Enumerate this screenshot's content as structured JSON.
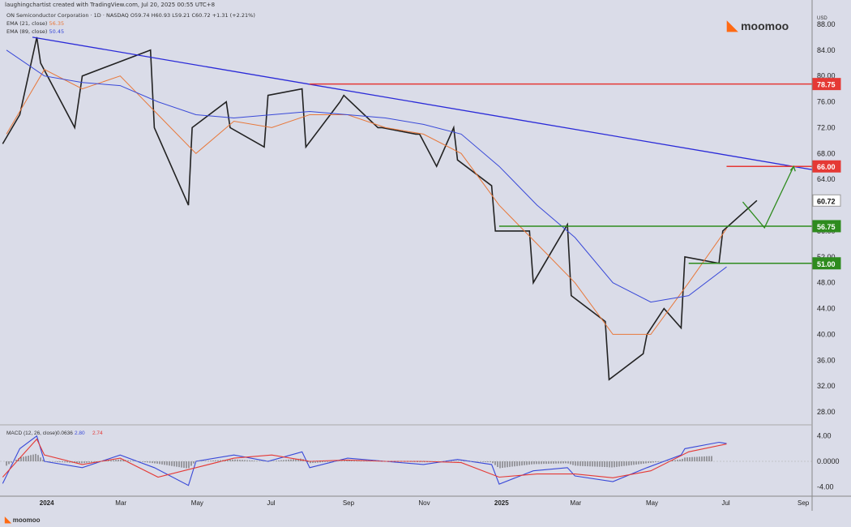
{
  "attribution": "laughingchartist created with TradingView.com, Jul 20, 2025 00:55 UTC+8",
  "legend": {
    "title": "ON Semiconductor Corporation · 1D · NASDAQ O59.74 H60.93 L59.21 C60.72 +1.31 (+2.21%)",
    "ema21_label": "EMA (21, close)",
    "ema21_value": "56.35",
    "ema89_label": "EMA (89, close)",
    "ema89_value": "50.45"
  },
  "brand": {
    "name": "moomoo",
    "footer": "moomoo"
  },
  "currency": "USD",
  "colors": {
    "background": "#dadce8",
    "ema21": "#e8783a",
    "ema89": "#3949d8",
    "trendline": "#2a2ad8",
    "resistance": "#e53935",
    "support": "#2e8b1e",
    "candle": "#222222"
  },
  "chart_data": [
    {
      "type": "line",
      "title": "ON Semiconductor Corporation · 1D · NASDAQ",
      "last_close": 60.72,
      "y_ticks": [
        "88.00",
        "84.00",
        "80.00",
        "76.00",
        "72.00",
        "68.00",
        "64.00",
        "56.00",
        "52.00",
        "48.00",
        "44.00",
        "40.00",
        "36.00",
        "32.00",
        "28.00"
      ],
      "ylim": [
        26.5,
        90
      ],
      "x_ticks": [
        "2024",
        "Mar",
        "May",
        "Jul",
        "Sep",
        "Nov",
        "2025",
        "Mar",
        "May",
        "Jul",
        "Sep"
      ],
      "price_labels": [
        {
          "text": "78.75",
          "value": 78.75,
          "kind": "resistance"
        },
        {
          "text": "66.00",
          "value": 66.0,
          "kind": "resistance"
        },
        {
          "text": "60.72",
          "value": 60.72,
          "kind": "last"
        },
        {
          "text": "56.75",
          "value": 56.75,
          "kind": "support"
        },
        {
          "text": "51.00",
          "value": 51.0,
          "kind": "support"
        }
      ],
      "price_path": [
        [
          "Dec 2023",
          69.5
        ],
        [
          "Dec 2023",
          74
        ],
        [
          "Dec 2023",
          86
        ],
        [
          "Jan 2024",
          82
        ],
        [
          "Jan 2024",
          72
        ],
        [
          "Feb 2024",
          80
        ],
        [
          "Mar 2024",
          82
        ],
        [
          "Mar 2024",
          84
        ],
        [
          "Apr 2024",
          72
        ],
        [
          "Apr 2024",
          60
        ],
        [
          "May 2024",
          72
        ],
        [
          "May 2024",
          76
        ],
        [
          "Jun 2024",
          72
        ],
        [
          "Jun 2024",
          69
        ],
        [
          "Jul 2024",
          77
        ],
        [
          "Jul 2024",
          78
        ],
        [
          "Aug 2024",
          69
        ],
        [
          "Aug 2024",
          76
        ],
        [
          "Sep 2024",
          77
        ],
        [
          "Sep 2024",
          72
        ],
        [
          "Oct 2024",
          72
        ],
        [
          "Oct 2024",
          71
        ],
        [
          "Nov 2024",
          71
        ],
        [
          "Nov 2024",
          66
        ],
        [
          "Nov 2024",
          72
        ],
        [
          "Dec 2024",
          67
        ],
        [
          "Dec 2024",
          63
        ],
        [
          "Jan 2025",
          56
        ],
        [
          "Jan 2025",
          56
        ],
        [
          "Feb 2025",
          48
        ],
        [
          "Feb 2025",
          57
        ],
        [
          "Mar 2025",
          46
        ],
        [
          "Mar 2025",
          42
        ],
        [
          "Apr 2025",
          33
        ],
        [
          "Apr 2025",
          37
        ],
        [
          "May 2025",
          40
        ],
        [
          "May 2025",
          44
        ],
        [
          "May 2025",
          41
        ],
        [
          "Jun 2025",
          52
        ],
        [
          "Jun 2025",
          51
        ],
        [
          "Jul 2025",
          56
        ],
        [
          "Jul 2025",
          60.72
        ]
      ],
      "ema21_path": [
        [
          "Dec 2023",
          71
        ],
        [
          "Jan 2024",
          81
        ],
        [
          "Feb 2024",
          78
        ],
        [
          "Mar 2024",
          80
        ],
        [
          "Apr 2024",
          74
        ],
        [
          "May 2024",
          68
        ],
        [
          "Jun 2024",
          73
        ],
        [
          "Jul 2024",
          72
        ],
        [
          "Aug 2024",
          74
        ],
        [
          "Sep 2024",
          74
        ],
        [
          "Oct 2024",
          72
        ],
        [
          "Nov 2024",
          71
        ],
        [
          "Dec 2024",
          68
        ],
        [
          "Jan 2025",
          60
        ],
        [
          "Feb 2025",
          54
        ],
        [
          "Mar 2025",
          48
        ],
        [
          "Apr 2025",
          40
        ],
        [
          "May 2025",
          40
        ],
        [
          "Jun 2025",
          48
        ],
        [
          "Jul 2025",
          56.35
        ]
      ],
      "ema89_path": [
        [
          "Dec 2023",
          84
        ],
        [
          "Jan 2024",
          80
        ],
        [
          "Feb 2024",
          79
        ],
        [
          "Mar 2024",
          78.5
        ],
        [
          "Apr 2024",
          76
        ],
        [
          "May 2024",
          74
        ],
        [
          "Jun 2024",
          73.5
        ],
        [
          "Jul 2024",
          74
        ],
        [
          "Aug 2024",
          74.5
        ],
        [
          "Sep 2024",
          74
        ],
        [
          "Oct 2024",
          73.5
        ],
        [
          "Nov 2024",
          72.5
        ],
        [
          "Dec 2024",
          71
        ],
        [
          "Jan 2025",
          66
        ],
        [
          "Feb 2025",
          60
        ],
        [
          "Mar 2025",
          55
        ],
        [
          "Apr 2025",
          48
        ],
        [
          "May 2025",
          45
        ],
        [
          "Jun 2025",
          46
        ],
        [
          "Jul 2025",
          50.45
        ]
      ],
      "trendline": [
        [
          "Dec 2023",
          86
        ],
        [
          "Sep 2025",
          65.5
        ]
      ],
      "horizontal_levels": [
        {
          "value": 78.75,
          "from": "Aug 2024",
          "kind": "resistance"
        },
        {
          "value": 66.0,
          "from": "Jul 2025",
          "kind": "resistance"
        },
        {
          "value": 56.75,
          "from": "Jan 2025",
          "kind": "support"
        },
        {
          "value": 51.0,
          "from": "Jun 2025",
          "kind": "support"
        }
      ],
      "projection": [
        [
          "Jul 2025",
          60.5
        ],
        [
          "Aug 2025",
          56.5
        ],
        [
          "Aug 2025",
          66
        ]
      ]
    },
    {
      "type": "line",
      "title": "MACD (12, 26, close)",
      "legend_values": [
        "0.0636",
        "2.80",
        "2.74"
      ],
      "y_ticks": [
        "4.00",
        "0.0000",
        "-4.00"
      ],
      "ylim": [
        -5.5,
        5.5
      ],
      "series": [
        {
          "name": "MACD",
          "color": "#3949d8",
          "path": [
            [
              "Dec 2023",
              -3.5
            ],
            [
              "Dec 2023",
              2
            ],
            [
              "Dec 2023",
              4
            ],
            [
              "Jan 2024",
              0
            ],
            [
              "Feb 2024",
              -1
            ],
            [
              "Mar 2024",
              1
            ],
            [
              "Apr 2024",
              -1
            ],
            [
              "Apr 2024",
              -3.8
            ],
            [
              "May 2024",
              0
            ],
            [
              "Jun 2024",
              1
            ],
            [
              "Jul 2024",
              0
            ],
            [
              "Jul 2024",
              1.5
            ],
            [
              "Aug 2024",
              -1
            ],
            [
              "Sep 2024",
              0.5
            ],
            [
              "Oct 2024",
              0
            ],
            [
              "Nov 2024",
              -0.5
            ],
            [
              "Dec 2024",
              0.3
            ],
            [
              "Dec 2024",
              -0.5
            ],
            [
              "Jan 2025",
              -3.6
            ],
            [
              "Feb 2025",
              -1.5
            ],
            [
              "Feb 2025",
              -1
            ],
            [
              "Mar 2025",
              -2.3
            ],
            [
              "Apr 2025",
              -3.2
            ],
            [
              "May 2025",
              -1
            ],
            [
              "May 2025",
              1
            ],
            [
              "Jun 2025",
              2
            ],
            [
              "Jun 2025",
              3
            ],
            [
              "Jul 2025",
              2.8
            ]
          ]
        },
        {
          "name": "Signal",
          "color": "#e53935",
          "path": [
            [
              "Dec 2023",
              -2.5
            ],
            [
              "Dec 2023",
              3.5
            ],
            [
              "Jan 2024",
              1
            ],
            [
              "Feb 2024",
              -0.5
            ],
            [
              "Mar 2024",
              0.5
            ],
            [
              "Apr 2024",
              -2.5
            ],
            [
              "May 2024",
              -1
            ],
            [
              "Jun 2024",
              0.5
            ],
            [
              "Jul 2024",
              1
            ],
            [
              "Aug 2024",
              0
            ],
            [
              "Sep 2024",
              0.2
            ],
            [
              "Oct 2024",
              0
            ],
            [
              "Nov 2024",
              0
            ],
            [
              "Dec 2024",
              -0.2
            ],
            [
              "Jan 2025",
              -2.5
            ],
            [
              "Feb 2025",
              -2
            ],
            [
              "Mar 2025",
              -2
            ],
            [
              "Apr 2025",
              -2.6
            ],
            [
              "May 2025",
              -1.5
            ],
            [
              "Jun 2025",
              1.5
            ],
            [
              "Jul 2025",
              2.74
            ]
          ]
        }
      ]
    }
  ]
}
